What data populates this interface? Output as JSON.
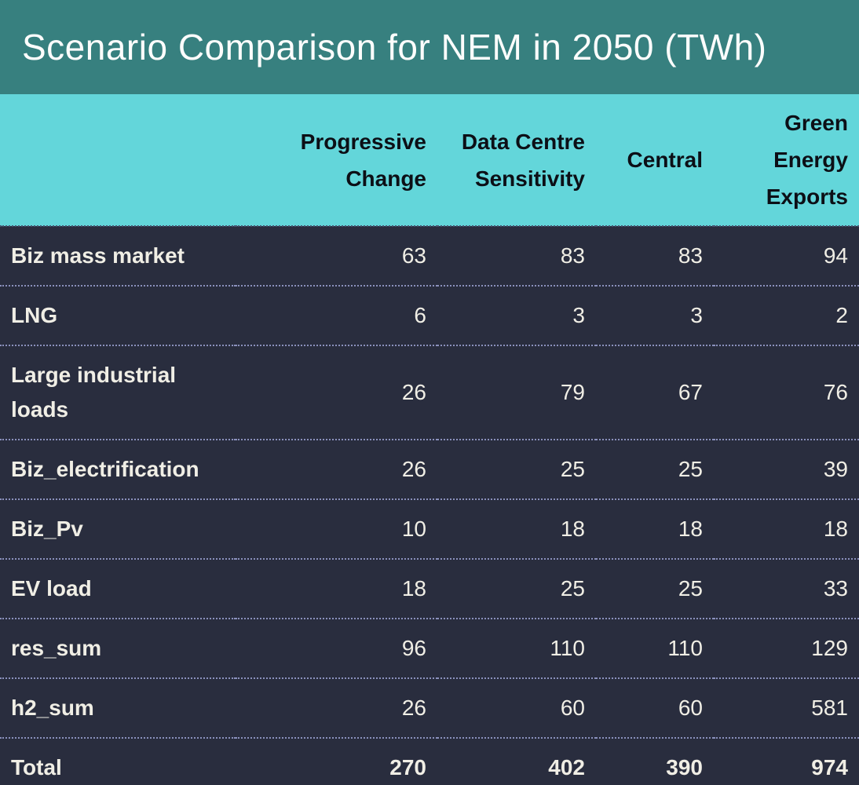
{
  "title": "Scenario Comparison for NEM in 2050 (TWh)",
  "table": {
    "corner_label": "",
    "columns": [
      "Progressive\nChange",
      "Data Centre\nSensitivity",
      "Central",
      "Green\nEnergy\nExports"
    ],
    "rows": [
      {
        "label": "Biz mass market",
        "values": [
          "63",
          "83",
          "83",
          "94"
        ],
        "is_total": false
      },
      {
        "label": "LNG",
        "values": [
          "6",
          "3",
          "3",
          "2"
        ],
        "is_total": false
      },
      {
        "label": "Large industrial\nloads",
        "values": [
          "26",
          "79",
          "67",
          "76"
        ],
        "is_total": false
      },
      {
        "label": "Biz_electrification",
        "values": [
          "26",
          "25",
          "25",
          "39"
        ],
        "is_total": false
      },
      {
        "label": "Biz_Pv",
        "values": [
          "10",
          "18",
          "18",
          "18"
        ],
        "is_total": false
      },
      {
        "label": "EV load",
        "values": [
          "18",
          "25",
          "25",
          "33"
        ],
        "is_total": false
      },
      {
        "label": "res_sum",
        "values": [
          "96",
          "110",
          "110",
          "129"
        ],
        "is_total": false
      },
      {
        "label": "h2_sum",
        "values": [
          "26",
          "60",
          "60",
          "581"
        ],
        "is_total": false
      },
      {
        "label": "Total",
        "values": [
          "270",
          "402",
          "390",
          "974"
        ],
        "is_total": true
      }
    ]
  },
  "colors": {
    "banner": "#37807f",
    "header_bg": "#63d6da",
    "header_text": "#0c0f16",
    "body_bg": "#292d3e",
    "body_text": "#f0eee5",
    "separator": "#8a90bc",
    "header_separator": "#47536e"
  },
  "chart_data": {
    "type": "table",
    "title": "Scenario Comparison for NEM in 2050 (TWh)",
    "unit": "TWh",
    "columns": [
      "Progressive Change",
      "Data Centre Sensitivity",
      "Central",
      "Green Energy Exports"
    ],
    "row_labels": [
      "Biz mass market",
      "LNG",
      "Large industrial loads",
      "Biz_electrification",
      "Biz_Pv",
      "EV load",
      "res_sum",
      "h2_sum",
      "Total"
    ],
    "values": [
      [
        63,
        83,
        83,
        94
      ],
      [
        6,
        3,
        3,
        2
      ],
      [
        26,
        79,
        67,
        76
      ],
      [
        26,
        25,
        25,
        39
      ],
      [
        10,
        18,
        18,
        18
      ],
      [
        18,
        25,
        25,
        33
      ],
      [
        96,
        110,
        110,
        129
      ],
      [
        26,
        60,
        60,
        581
      ],
      [
        270,
        402,
        390,
        974
      ]
    ]
  }
}
